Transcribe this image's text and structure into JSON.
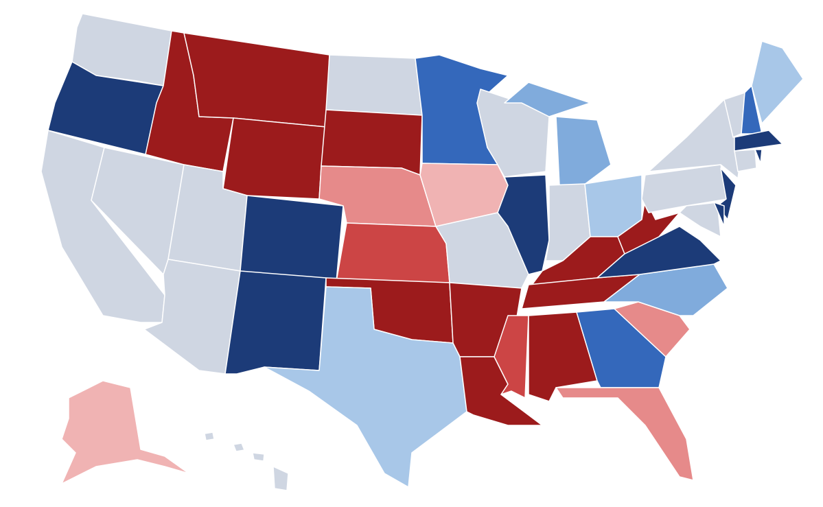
{
  "map": {
    "palette": [
      "#cfd6e2",
      "#9c1b1c",
      "#cc4545",
      "#e68a8a",
      "#f0b3b3",
      "#1c3b78",
      "#3468bb",
      "#80abdc",
      "#a8c7e8"
    ]
  }
}
